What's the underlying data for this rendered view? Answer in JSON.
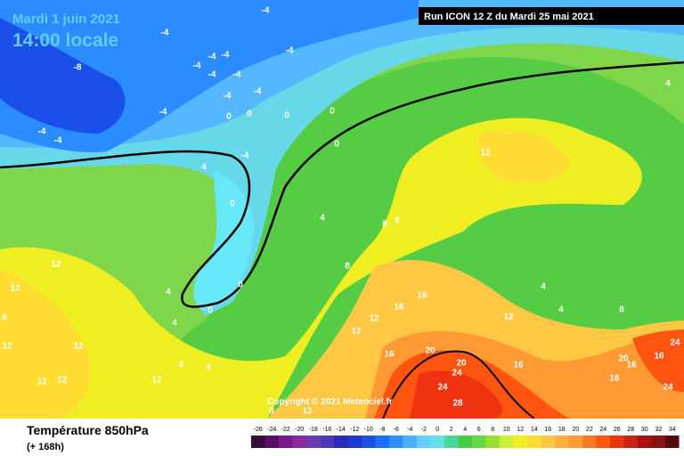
{
  "header": {
    "date": "Mardi 1 juin 2021",
    "time": "14:00 locale",
    "run": "Run ICON 12 Z du Mardi 25 mai 2021"
  },
  "copyright": "Copyright © 2021 Meteociel.fr",
  "footer": {
    "title": "Température 850hPa",
    "lead": "(+ 168h)"
  },
  "scale": {
    "ticks": [
      -26,
      -24,
      -22,
      -20,
      -18,
      -16,
      -14,
      -12,
      -10,
      -8,
      -6,
      -4,
      -2,
      0,
      2,
      4,
      6,
      8,
      10,
      12,
      14,
      16,
      18,
      20,
      22,
      24,
      26,
      28,
      30,
      32,
      34
    ],
    "colors": [
      "#3a0a3a",
      "#5a1060",
      "#7a1a8a",
      "#8a2aa0",
      "#6a3ab0",
      "#4a3ab8",
      "#2a2ab8",
      "#1a3ad0",
      "#1a50e8",
      "#1a70f8",
      "#2a90ff",
      "#4ab0ff",
      "#66ccff",
      "#66e0e8",
      "#44d8a0",
      "#44cc44",
      "#66d844",
      "#99e033",
      "#ccee33",
      "#eeee22",
      "#ffdd33",
      "#ffc844",
      "#ffb040",
      "#ff9933",
      "#ff7722",
      "#ff5511",
      "#ee3311",
      "#cc2211",
      "#aa1111",
      "#881111",
      "#550a0a"
    ]
  },
  "contour_labels": [
    "-4",
    "-4",
    "-8",
    "-4",
    "-4",
    "-4",
    "-4",
    "-4",
    "-4",
    "-4",
    "-4",
    "-4",
    "-4",
    "-4",
    "0",
    "0",
    "0",
    "0",
    "0",
    "-4",
    "4",
    "0",
    "4",
    "8",
    "8",
    "12",
    "8",
    "0",
    "0",
    "4",
    "4",
    "4",
    "4",
    "12",
    "12",
    "8",
    "12",
    "12",
    "12",
    "12",
    "12",
    "16",
    "16",
    "12",
    "12",
    "12",
    "16",
    "20",
    "20",
    "24",
    "24",
    "28",
    "16",
    "4",
    "4",
    "8",
    "20",
    "16",
    "24",
    "16",
    "24",
    "16",
    "8",
    "12",
    "4"
  ]
}
